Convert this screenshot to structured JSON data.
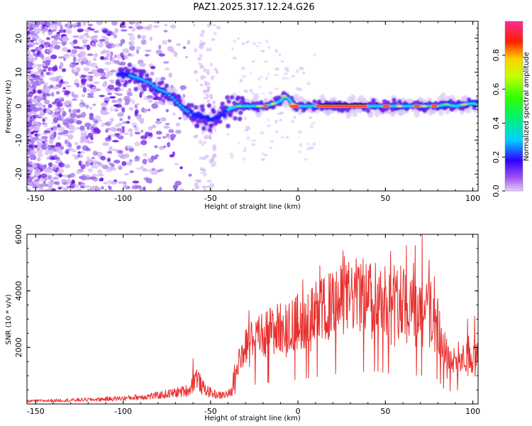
{
  "title": "PAZ1.2025.317.12.24.G26",
  "colors": {
    "snr_line": "#e8302e",
    "track_line": "#000000",
    "scatter_light": "#d4b8f5",
    "scatter_mid": "#a070ee",
    "scatter_dark": "#6a14e6"
  },
  "chart_data": [
    {
      "name": "spectrogram",
      "type": "heatmap",
      "xlabel": "Height of straight line (km)",
      "ylabel": "Frequency (Hz)",
      "xlim": [
        -155,
        103
      ],
      "ylim": [
        -25,
        25
      ],
      "xticks": [
        -150,
        -100,
        -50,
        0,
        50,
        100
      ],
      "xtick_labels": [
        "-150",
        "-100",
        "-50",
        "0",
        "50",
        "100"
      ],
      "yticks": [
        -20,
        -10,
        0,
        10,
        20
      ],
      "ytick_labels": [
        "-20",
        "-10",
        "0",
        "10",
        "20"
      ],
      "track_x": [
        -103,
        -96,
        -90,
        -85,
        -80,
        -75,
        -70,
        -65,
        -60,
        -55,
        -50,
        -45,
        -40,
        -35,
        -30,
        -25,
        -20,
        -15,
        -10,
        -8,
        -5,
        -3,
        0,
        10,
        20,
        30,
        40,
        50,
        60,
        70,
        80,
        85,
        90,
        95,
        100,
        103
      ],
      "track_y": [
        9.5,
        9,
        8,
        7,
        5,
        4,
        1.5,
        -1,
        -2.5,
        -3,
        -4,
        -3,
        -1,
        0,
        0,
        0,
        0,
        0.5,
        1.5,
        3,
        2,
        0.5,
        0,
        0,
        0,
        0,
        0,
        0,
        0,
        0,
        0,
        0.5,
        0,
        0.5,
        0.8,
        0.5
      ],
      "colorbar": {
        "label": "Normalized spectral amplitude",
        "range": [
          0,
          1
        ],
        "ticks": [
          0.0,
          0.2,
          0.4,
          0.6,
          0.8
        ],
        "tick_labels": [
          "0.0",
          "0.2",
          "0.4",
          "0.6",
          "0.8"
        ]
      }
    },
    {
      "name": "snr",
      "type": "line",
      "xlabel": "Height of straight line (km)",
      "ylabel": "SNR (10 * v/v)",
      "xlim": [
        -155,
        103
      ],
      "ylim": [
        0,
        6000
      ],
      "xticks": [
        -150,
        -100,
        -50,
        0,
        50,
        100
      ],
      "xtick_labels": [
        "-150",
        "-100",
        "-50",
        "0",
        "50",
        "100"
      ],
      "yticks": [
        2000,
        4000,
        6000
      ],
      "ytick_labels": [
        "2000",
        "4000",
        "6000"
      ],
      "envelope_x": [
        -155,
        -120,
        -100,
        -80,
        -70,
        -62,
        -58,
        -55,
        -50,
        -45,
        -40,
        -38,
        -36,
        -32,
        -28,
        -25,
        -20,
        -15,
        -10,
        -5,
        0,
        10,
        20,
        30,
        35,
        40,
        45,
        50,
        55,
        60,
        65,
        70,
        73,
        76,
        80,
        83,
        85,
        90,
        95,
        100,
        103
      ],
      "envelope_y": [
        100,
        150,
        200,
        300,
        400,
        500,
        1000,
        600,
        400,
        300,
        350,
        400,
        1200,
        1800,
        2200,
        2300,
        2400,
        2600,
        2700,
        2800,
        2900,
        3200,
        3500,
        3800,
        3850,
        3800,
        3900,
        3700,
        3400,
        3700,
        3500,
        3300,
        3500,
        3300,
        2900,
        1900,
        1500,
        1600,
        1700,
        1600,
        1700
      ],
      "spikes_x": [
        -60,
        -28,
        -7,
        7,
        42,
        53,
        55,
        62,
        67,
        71,
        75,
        78,
        85,
        97,
        101
      ],
      "spikes_y": [
        1600,
        3300,
        3500,
        3300,
        4300,
        5400,
        4900,
        5600,
        5600,
        6000,
        5100,
        4500,
        2300,
        3000,
        3100
      ]
    }
  ]
}
